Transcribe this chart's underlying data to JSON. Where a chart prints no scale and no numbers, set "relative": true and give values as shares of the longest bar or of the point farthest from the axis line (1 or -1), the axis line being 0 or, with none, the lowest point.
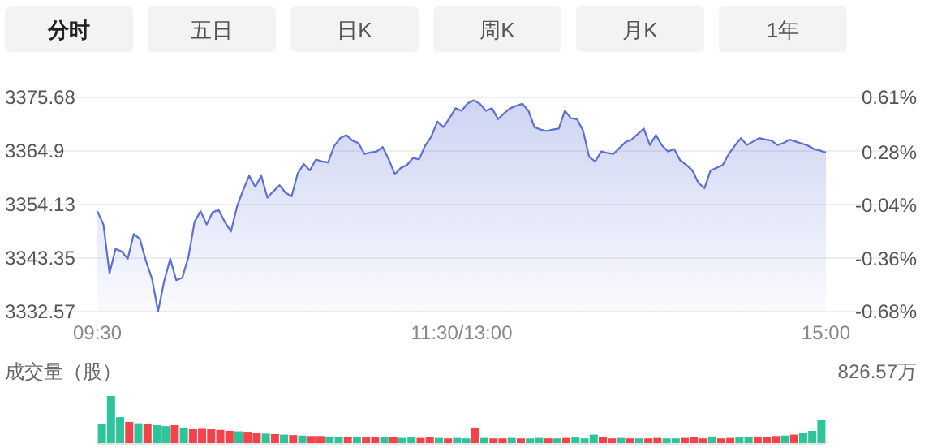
{
  "chart_data": [
    {
      "type": "area",
      "annotations": [
        "分时",
        "五日",
        "日K",
        "周K",
        "月K",
        "1年"
      ],
      "categories": [
        "09:30",
        null,
        null,
        null,
        null,
        null,
        null,
        null,
        null,
        null,
        null,
        null,
        null,
        null,
        null,
        null,
        null,
        null,
        null,
        null,
        null,
        null,
        null,
        null,
        null,
        null,
        null,
        null,
        null,
        null,
        null,
        null,
        null,
        null,
        null,
        null,
        null,
        null,
        null,
        null,
        null,
        null,
        null,
        null,
        null,
        null,
        null,
        null,
        null,
        null,
        null,
        null,
        null,
        null,
        null,
        null,
        null,
        null,
        null,
        null,
        "11:30/13:00",
        null,
        null,
        null,
        null,
        null,
        null,
        null,
        null,
        null,
        null,
        null,
        null,
        null,
        null,
        null,
        null,
        null,
        null,
        null,
        null,
        null,
        null,
        null,
        null,
        null,
        null,
        null,
        null,
        null,
        null,
        null,
        null,
        null,
        null,
        null,
        null,
        null,
        null,
        null,
        null,
        null,
        null,
        null,
        null,
        null,
        null,
        null,
        null,
        null,
        null,
        null,
        null,
        null,
        null,
        null,
        null,
        null,
        null,
        null,
        "15:00"
      ],
      "ylim": [
        3332.57,
        3375.68
      ],
      "yticks": [
        3332.57,
        3343.35,
        3354.13,
        3364.9,
        3375.68
      ],
      "y2lim": [
        -0.68,
        0.61
      ],
      "y2ticks": [
        {
          "value": -0.68,
          "label": "-0.68%"
        },
        {
          "value": -0.36,
          "label": "-0.36%"
        },
        {
          "value": -0.04,
          "label": "-0.04%"
        },
        {
          "value": 0.28,
          "label": "0.28%"
        },
        {
          "value": 0.61,
          "label": "0.61%"
        }
      ],
      "grid": "y",
      "series": [
        {
          "color": "#5b6fd6",
          "values": [
            3352.8,
            3350.1,
            3340.3,
            3345.2,
            3344.7,
            3343.2,
            3348.2,
            3347.2,
            3342.8,
            3339.2,
            3332.6,
            3338.7,
            3343.2,
            3338.9,
            3339.4,
            3343.6,
            3350.6,
            3352.8,
            3350.1,
            3352.6,
            3353.0,
            3350.6,
            3348.7,
            3353.7,
            3357.0,
            3359.9,
            3357.7,
            3359.9,
            3355.5,
            3356.8,
            3358.0,
            3356.5,
            3355.8,
            3360.4,
            3362.3,
            3361.0,
            3363.2,
            3362.8,
            3362.6,
            3365.9,
            3367.5,
            3368.1,
            3367.0,
            3366.5,
            3364.3,
            3364.6,
            3364.8,
            3365.7,
            3363.2,
            3360.2,
            3361.5,
            3362.1,
            3363.5,
            3363.2,
            3366.0,
            3367.8,
            3370.8,
            3369.7,
            3371.5,
            3373.5,
            3373.0,
            3374.5,
            3375.1,
            3374.4,
            3373.0,
            3373.5,
            3371.3,
            3372.5,
            3373.5,
            3374.0,
            3374.4,
            3373.0,
            3369.7,
            3369.2,
            3368.9,
            3369.2,
            3369.4,
            3373.0,
            3371.5,
            3371.3,
            3369.0,
            3363.7,
            3362.8,
            3364.8,
            3364.5,
            3364.3,
            3365.5,
            3366.7,
            3367.2,
            3368.3,
            3369.4,
            3366.1,
            3368.1,
            3366.0,
            3364.8,
            3365.3,
            3363.0,
            3362.1,
            3361.0,
            3358.5,
            3357.4,
            3361.0,
            3361.5,
            3362.1,
            3364.3,
            3366.0,
            3367.5,
            3366.1,
            3366.8,
            3367.5,
            3367.2,
            3367.0,
            3366.1,
            3366.5,
            3367.2,
            3366.8,
            3366.4,
            3366.0,
            3365.3,
            3365.0,
            3364.6
          ]
        }
      ]
    },
    {
      "type": "bar",
      "relative": true,
      "ylabel": "成交量（股）",
      "annotations": [
        "826.57万"
      ],
      "categories": [
        null,
        null,
        null,
        null,
        null,
        null,
        null,
        null,
        null,
        null,
        null,
        null,
        null,
        null,
        null,
        null,
        null,
        null,
        null,
        null,
        null,
        null,
        null,
        null,
        null,
        null,
        null,
        null,
        null,
        null,
        null,
        null,
        null,
        null,
        null,
        null,
        null,
        null,
        null,
        null,
        null,
        null,
        null,
        null,
        null,
        null,
        null,
        null,
        null,
        null,
        null,
        null,
        null,
        null,
        null,
        null,
        null,
        null,
        null,
        null,
        null,
        null,
        null,
        null,
        null,
        null,
        null,
        null,
        null,
        null,
        null,
        null,
        null,
        null,
        null,
        null,
        null,
        null,
        null,
        null
      ],
      "values": [
        0.4,
        1.0,
        0.55,
        0.45,
        0.42,
        0.4,
        0.38,
        0.36,
        0.38,
        0.33,
        0.3,
        0.32,
        0.3,
        0.28,
        0.26,
        0.25,
        0.24,
        0.22,
        0.2,
        0.19,
        0.18,
        0.17,
        0.16,
        0.15,
        0.15,
        0.14,
        0.14,
        0.13,
        0.13,
        0.12,
        0.12,
        0.13,
        0.12,
        0.11,
        0.12,
        0.11,
        0.12,
        0.11,
        0.1,
        0.11,
        0.1,
        0.33,
        0.11,
        0.1,
        0.1,
        0.11,
        0.1,
        0.1,
        0.11,
        0.1,
        0.1,
        0.11,
        0.12,
        0.1,
        0.18,
        0.13,
        0.1,
        0.11,
        0.1,
        0.1,
        0.1,
        0.11,
        0.1,
        0.1,
        0.11,
        0.12,
        0.1,
        0.14,
        0.1,
        0.11,
        0.12,
        0.13,
        0.14,
        0.13,
        0.15,
        0.16,
        0.18,
        0.22,
        0.26,
        0.5
      ],
      "colors": [
        "#2ec49a",
        "#2ec49a",
        "#2ec49a",
        "#f2424a",
        "#2ec49a",
        "#f2424a",
        "#2ec49a",
        "#2ec49a",
        "#f2424a",
        "#2ec49a",
        "#f2424a",
        "#f2424a",
        "#f2424a",
        "#f2424a",
        "#f2424a",
        "#2ec49a",
        "#f2424a",
        "#f2424a",
        "#2ec49a",
        "#f2424a",
        "#2ec49a",
        "#f2424a",
        "#2ec49a",
        "#f2424a",
        "#f2424a",
        "#2ec49a",
        "#2ec49a",
        "#f2424a",
        "#2ec49a",
        "#f2424a",
        "#f2424a",
        "#2ec49a",
        "#f2424a",
        "#2ec49a",
        "#2ec49a",
        "#f2424a",
        "#f2424a",
        "#2ec49a",
        "#f2424a",
        "#2ec49a",
        "#2ec49a",
        "#f2424a",
        "#2ec49a",
        "#f2424a",
        "#f2424a",
        "#2ec49a",
        "#f2424a",
        "#2ec49a",
        "#2ec49a",
        "#f2424a",
        "#2ec49a",
        "#f2424a",
        "#2ec49a",
        "#2ec49a",
        "#2ec49a",
        "#f2424a",
        "#f2424a",
        "#2ec49a",
        "#f2424a",
        "#2ec49a",
        "#f2424a",
        "#f2424a",
        "#2ec49a",
        "#2ec49a",
        "#f2424a",
        "#f2424a",
        "#f2424a",
        "#2ec49a",
        "#f2424a",
        "#f2424a",
        "#2ec49a",
        "#2ec49a",
        "#f2424a",
        "#f2424a",
        "#f2424a",
        "#2ec49a",
        "#f2424a",
        "#2ec49a",
        "#2ec49a",
        "#2ec49a"
      ]
    }
  ]
}
